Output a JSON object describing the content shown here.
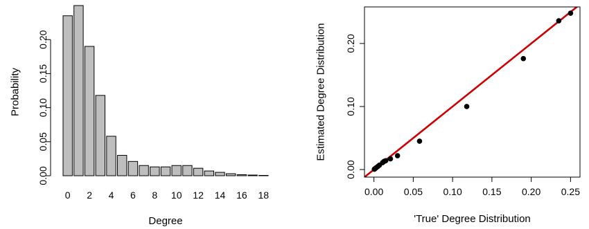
{
  "chart_data": [
    {
      "type": "bar",
      "xlabel": "Degree",
      "ylabel": "Probability",
      "categories": [
        "0",
        "1",
        "2",
        "3",
        "4",
        "5",
        "6",
        "7",
        "8",
        "9",
        "10",
        "11",
        "12",
        "13",
        "14",
        "15",
        "16",
        "17",
        "18"
      ],
      "values": [
        0.235,
        0.25,
        0.19,
        0.118,
        0.058,
        0.03,
        0.021,
        0.015,
        0.013,
        0.013,
        0.015,
        0.015,
        0.011,
        0.007,
        0.005,
        0.003,
        0.0015,
        0.001,
        0.0005
      ],
      "xtick_labels": [
        "0",
        "2",
        "4",
        "6",
        "8",
        "10",
        "12",
        "14",
        "16",
        "18"
      ],
      "ylim": [
        0,
        0.25
      ],
      "yticks": [
        0.0,
        0.05,
        0.1,
        0.15,
        0.2
      ],
      "ytick_labels": [
        "0.00",
        "0.05",
        "0.10",
        "0.15",
        "0.20"
      ],
      "bar_color": "#bebebe",
      "grid": false
    },
    {
      "type": "scatter",
      "xlabel": "'True' Degree Distribution",
      "ylabel": "Estimated Degree Distribution",
      "points": [
        {
          "x": 0.0005,
          "y": 0.0005
        },
        {
          "x": 0.001,
          "y": 0.001
        },
        {
          "x": 0.0015,
          "y": 0.0015
        },
        {
          "x": 0.003,
          "y": 0.003
        },
        {
          "x": 0.005,
          "y": 0.005
        },
        {
          "x": 0.007,
          "y": 0.007
        },
        {
          "x": 0.011,
          "y": 0.011
        },
        {
          "x": 0.013,
          "y": 0.013
        },
        {
          "x": 0.015,
          "y": 0.014
        },
        {
          "x": 0.021,
          "y": 0.017
        },
        {
          "x": 0.03,
          "y": 0.022
        },
        {
          "x": 0.058,
          "y": 0.045
        },
        {
          "x": 0.118,
          "y": 0.1
        },
        {
          "x": 0.19,
          "y": 0.176
        },
        {
          "x": 0.235,
          "y": 0.236
        },
        {
          "x": 0.25,
          "y": 0.248
        }
      ],
      "reference_line": {
        "slope": 1,
        "intercept": 0,
        "color": "#cc0000"
      },
      "xlim": [
        -0.012,
        0.262
      ],
      "ylim": [
        -0.012,
        0.258
      ],
      "xticks": [
        0.0,
        0.05,
        0.1,
        0.15,
        0.2,
        0.25
      ],
      "xtick_labels": [
        "0.00",
        "0.05",
        "0.10",
        "0.15",
        "0.20",
        "0.25"
      ],
      "yticks": [
        0.0,
        0.1,
        0.2
      ],
      "ytick_labels": [
        "0.00",
        "0.10",
        "0.20"
      ],
      "point_color": "#000000",
      "grid": false
    }
  ]
}
